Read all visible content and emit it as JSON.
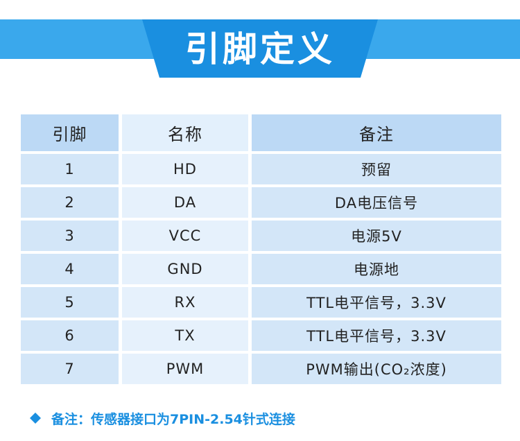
{
  "header": {
    "title": "引脚定义"
  },
  "table": {
    "columns": [
      "引脚",
      "名称",
      "备注"
    ],
    "rows": [
      [
        "1",
        "HD",
        "预留"
      ],
      [
        "2",
        "DA",
        "DA电压信号"
      ],
      [
        "3",
        "VCC",
        "电源5V"
      ],
      [
        "4",
        "GND",
        "电源地"
      ],
      [
        "5",
        "RX",
        "TTL电平信号，3.3V"
      ],
      [
        "6",
        "TX",
        "TTL电平信号，3.3V"
      ],
      [
        "7",
        "PWM",
        "PWM输出(CO₂浓度)"
      ]
    ]
  },
  "note": "备注：传感器接口为7PIN-2.54针式连接"
}
